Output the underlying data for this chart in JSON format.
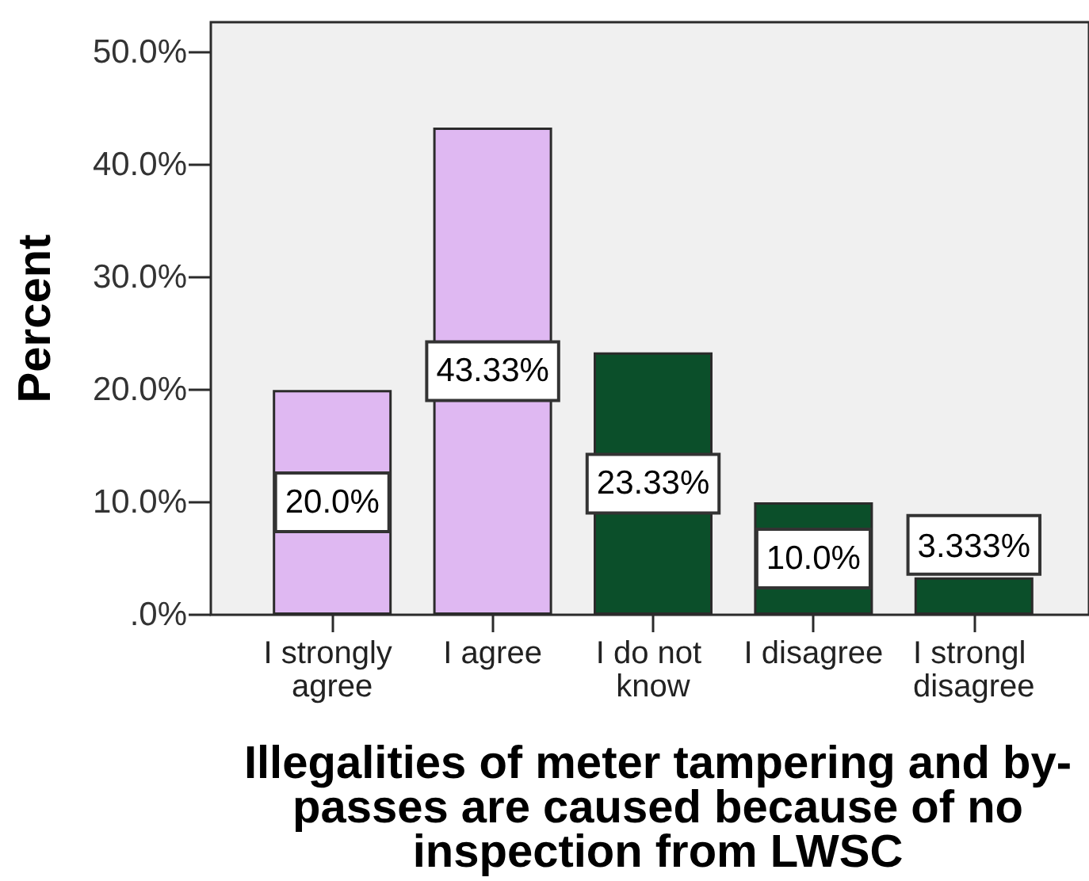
{
  "chart_data": {
    "type": "bar",
    "ylabel": "Percent",
    "xlabel": "Illegalities of meter tampering and by-passes are caused because of no inspection from LWSC",
    "categories": [
      "I strongly agree",
      "I agree",
      "I do not know",
      "I disagree",
      "I strongl disagree"
    ],
    "values": [
      20.0,
      43.33,
      23.33,
      10.0,
      3.333
    ],
    "colors": [
      "#dfb8f2",
      "#dfb8f2",
      "#0b4f2a",
      "#0b4f2a",
      "#0b4f2a"
    ],
    "value_labels": [
      "20.0%",
      "43.33%",
      "23.33%",
      "10.0%",
      "3.333%"
    ],
    "ylim": [
      0,
      52.7
    ],
    "yticks": [
      {
        "value": 0,
        "label": ".0%"
      },
      {
        "value": 10,
        "label": "10.0%"
      },
      {
        "value": 20,
        "label": "20.0%"
      },
      {
        "value": 30,
        "label": "30.0%"
      },
      {
        "value": 40,
        "label": "40.0%"
      },
      {
        "value": 50,
        "label": "50.0%"
      }
    ]
  }
}
